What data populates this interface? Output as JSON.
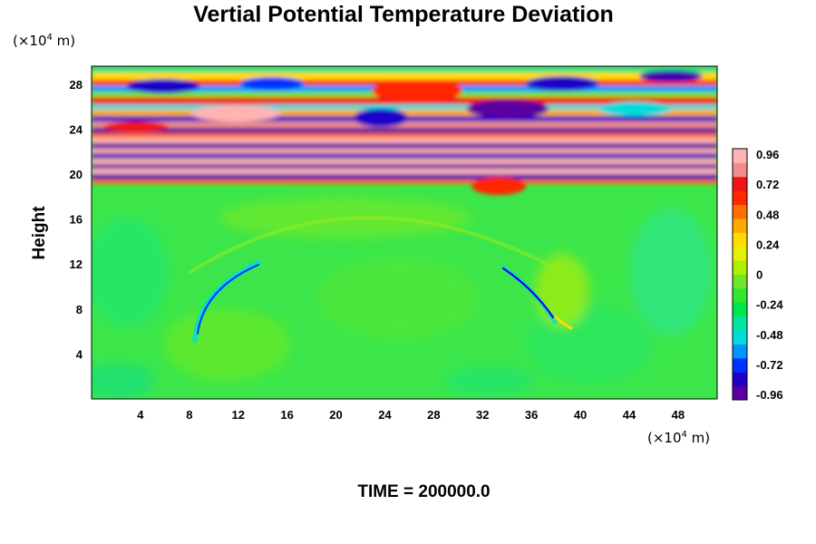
{
  "chart_data": {
    "type": "heatmap",
    "title": "Vertial Potential Temperature Deviation",
    "ylabel": "Height",
    "xunit": {
      "prefix": "(×10",
      "exp": "4",
      "suffix": " m)"
    },
    "yunit": {
      "prefix": "(×10",
      "exp": "4",
      "suffix": " m)"
    },
    "xlim": [
      0,
      51.2
    ],
    "ylim": [
      0,
      29.6
    ],
    "xticks": [
      "4",
      "8",
      "12",
      "16",
      "20",
      "24",
      "28",
      "32",
      "36",
      "40",
      "44",
      "48"
    ],
    "yticks": [
      "4",
      "8",
      "12",
      "16",
      "20",
      "24",
      "28"
    ],
    "colorbar": {
      "ticks": [
        "0.96",
        "0.72",
        "0.48",
        "0.24",
        "0",
        "-0.24",
        "-0.48",
        "-0.72",
        "-0.96"
      ],
      "range": [
        -0.96,
        0.96
      ],
      "colors": [
        "#5a00a0",
        "#1e00c8",
        "#0032ff",
        "#0096ff",
        "#00dcdc",
        "#00e6a0",
        "#00e650",
        "#32e632",
        "#6ee628",
        "#aaf000",
        "#e6f000",
        "#ffdc00",
        "#ffaa00",
        "#ff6e00",
        "#ff2800",
        "#f01414",
        "#f08c8c",
        "#ffb4b4"
      ]
    },
    "time_label": "TIME = 200000.0"
  }
}
